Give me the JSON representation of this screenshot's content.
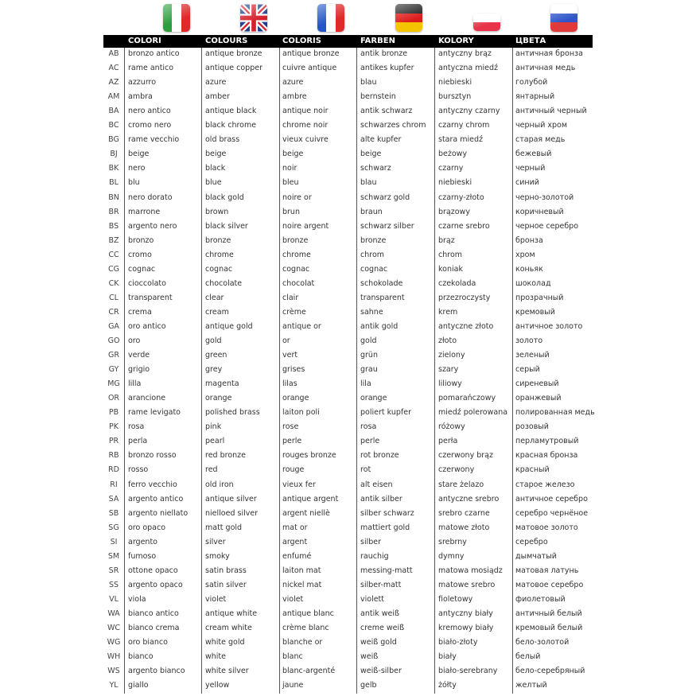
{
  "flags": [
    {
      "name": "italy-flag",
      "colors": [
        "#2e9e3e",
        "#ffffff",
        "#e02a2a"
      ],
      "dir": "v"
    },
    {
      "name": "uk-flag",
      "colors": [
        "#1f3b8c",
        "#ffffff",
        "#d4202b"
      ],
      "dir": "uk"
    },
    {
      "name": "france-flag",
      "colors": [
        "#2456c7",
        "#ffffff",
        "#e02a2a"
      ],
      "dir": "v"
    },
    {
      "name": "germany-flag",
      "colors": [
        "#222222",
        "#dd1c1c",
        "#f5c400"
      ],
      "dir": "h"
    },
    {
      "name": "poland-flag",
      "colors": [
        "#ffffff",
        "#e8334a"
      ],
      "dir": "h2"
    },
    {
      "name": "russia-flag",
      "colors": [
        "#ffffff",
        "#2f55c9",
        "#e03a3a"
      ],
      "dir": "h"
    }
  ],
  "headers": [
    "COLORI",
    "COLOURS",
    "COLORIS",
    "FARBEN",
    "KOLORY",
    "ЦВЕТА"
  ],
  "rows": [
    [
      "AB",
      "bronzo antico",
      "antique bronze",
      "antique bronze",
      "antik bronze",
      "antyczny brąz",
      "античная бронза"
    ],
    [
      "AC",
      "rame antico",
      "antique copper",
      "cuivre antique",
      "antikes kupfer",
      "antyczna miedź",
      "античная медь"
    ],
    [
      "AZ",
      "azzurro",
      "azure",
      "azure",
      "blau",
      "niebieski",
      "голубой"
    ],
    [
      "AM",
      "ambra",
      "amber",
      "ambre",
      "bernstein",
      "bursztyn",
      "янтарный"
    ],
    [
      "BA",
      "nero antico",
      "antique black",
      "antique noir",
      "antik schwarz",
      "antyczny czarny",
      "античный черный"
    ],
    [
      "BC",
      "cromo nero",
      "black chrome",
      "chrome noir",
      "schwarzes chrom",
      "czarny chrom",
      "черный хром"
    ],
    [
      "BG",
      "rame vecchio",
      "old brass",
      "vieux cuivre",
      "alte kupfer",
      "stara miedź",
      "старая медь"
    ],
    [
      "BJ",
      "beige",
      "beige",
      "beige",
      "beige",
      "beżowy",
      "бежевый"
    ],
    [
      "BK",
      "nero",
      "black",
      "noir",
      "schwarz",
      "czarny",
      "черный"
    ],
    [
      "BL",
      "blu",
      "blue",
      "bleu",
      "blau",
      "niebieski",
      "синий"
    ],
    [
      "BN",
      "nero dorato",
      "black gold",
      "noire or",
      "schwarz gold",
      "czarny-złoto",
      "черно-золотой"
    ],
    [
      "BR",
      "marrone",
      "brown",
      "brun",
      "braun",
      "brązowy",
      "коричневый"
    ],
    [
      "BS",
      "argento nero",
      "black silver",
      "noire argent",
      "schwarz silber",
      "czarne srebro",
      "черное серебро"
    ],
    [
      "BZ",
      "bronzo",
      "bronze",
      "bronze",
      "bronze",
      "brąz",
      "бронза"
    ],
    [
      "CC",
      "cromo",
      "chrome",
      "chrome",
      "chrom",
      "chrom",
      "хром"
    ],
    [
      "CG",
      "cognac",
      "cognac",
      "cognac",
      "cognac",
      "koniak",
      "коньяк"
    ],
    [
      "CK",
      "cioccolato",
      "chocolate",
      "chocolat",
      "schokolade",
      "czekolada",
      "шоколад"
    ],
    [
      "CL",
      "transparent",
      "clear",
      "clair",
      "transparent",
      "przezroczysty",
      "прозрачный"
    ],
    [
      "CR",
      "crema",
      "cream",
      "crème",
      "sahne",
      "krem",
      "кремовый"
    ],
    [
      "GA",
      "oro antico",
      "antique gold",
      "antique or",
      "antik gold",
      "antyczne złoto",
      "античное золото"
    ],
    [
      "GO",
      "oro",
      "gold",
      "or",
      "gold",
      "złoto",
      "золото"
    ],
    [
      "GR",
      "verde",
      "green",
      "vert",
      "grün",
      "zielony",
      "зеленый"
    ],
    [
      "GY",
      "grigio",
      "grey",
      "grises",
      "grau",
      "szary",
      "серый"
    ],
    [
      "MG",
      "lilla",
      "magenta",
      "lilas",
      "lila",
      "liliowy",
      "сиреневый"
    ],
    [
      "OR",
      "arancione",
      "orange",
      "orange",
      "orange",
      "pomarańczowy",
      "оранжевый"
    ],
    [
      "PB",
      "rame levigato",
      "polished brass",
      "laiton poli",
      "poliert kupfer",
      "miedź polerowana",
      "полированная медь"
    ],
    [
      "PK",
      "rosa",
      "pink",
      "rose",
      "rosa",
      "różowy",
      "розовый"
    ],
    [
      "PR",
      "perla",
      "pearl",
      "perle",
      "perle",
      "perła",
      "перламутровый"
    ],
    [
      "RB",
      "bronzo rosso",
      "red bronze",
      "rouges bronze",
      "rot bronze",
      "czerwony brąz",
      "красная бронза"
    ],
    [
      "RD",
      "rosso",
      "red",
      "rouge",
      "rot",
      "czerwony",
      "красный"
    ],
    [
      "RI",
      "ferro vecchio",
      "old iron",
      "vieux fer",
      "alt eisen",
      "stare żelazo",
      "старое железо"
    ],
    [
      "SA",
      "argento antico",
      "antique silver",
      "antique argent",
      "antik silber",
      "antyczne srebro",
      "античное серебро"
    ],
    [
      "SB",
      "argento niellato",
      "nielloed silver",
      "argent niellè",
      "silber schwarz",
      "srebro czarne",
      "серебро чернёное"
    ],
    [
      "SG",
      "oro opaco",
      "matt gold",
      "mat or",
      "mattiert gold",
      "matowe złoto",
      "матовое золото"
    ],
    [
      "SI",
      "argento",
      "silver",
      "argent",
      "silber",
      "srebrny",
      "серебро"
    ],
    [
      "SM",
      "fumoso",
      "smoky",
      "enfumé",
      "rauchig",
      "dymny",
      "дымчатый"
    ],
    [
      "SR",
      "ottone opaco",
      "satin brass",
      "laiton mat",
      "messing-matt",
      "matowa mosiądz",
      "матовая латунь"
    ],
    [
      "SS",
      "argento opaco",
      "satin silver",
      "nickel mat",
      "silber-matt",
      "matowe srebro",
      "матовое серебро"
    ],
    [
      "VL",
      "viola",
      "violet",
      "violet",
      "violett",
      "fioletowy",
      "фиолетовый"
    ],
    [
      "WA",
      "bianco antico",
      "antique white",
      "antique blanc",
      "antik weiß",
      "antyczny biały",
      "античный белый"
    ],
    [
      "WC",
      "bianco crema",
      "cream white",
      "crème blanc",
      "creme weiß",
      "kremowy biały",
      "кремовый белый"
    ],
    [
      "WG",
      "oro bianco",
      "white gold",
      "blanche or",
      "weiß gold",
      "biało-złoty",
      "бело-золотой"
    ],
    [
      "WH",
      "bianco",
      "white",
      "blanc",
      "weiß",
      "biały",
      "белый"
    ],
    [
      "WS",
      "argento bianco",
      "white silver",
      "blanc-argenté",
      "weiß-silber",
      "biało-serebrany",
      "бело-серебряный"
    ],
    [
      "YL",
      "giallo",
      "yellow",
      "jaune",
      "gelb",
      "żółty",
      "желтый"
    ]
  ]
}
